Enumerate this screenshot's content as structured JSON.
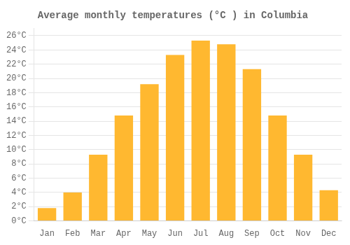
{
  "chart_data": {
    "type": "bar",
    "title": "Average monthly temperatures (°C ) in Columbia",
    "categories": [
      "Jan",
      "Feb",
      "Mar",
      "Apr",
      "May",
      "Jun",
      "Jul",
      "Aug",
      "Sep",
      "Oct",
      "Nov",
      "Dec"
    ],
    "values": [
      1.8,
      4.0,
      9.3,
      14.8,
      19.2,
      23.3,
      25.3,
      24.8,
      21.3,
      14.8,
      9.3,
      4.3
    ],
    "color": "#FFB830",
    "ylim": [
      0,
      27
    ],
    "yticks": [
      {
        "value": 0,
        "label": "0°C"
      },
      {
        "value": 2,
        "label": "2°C"
      },
      {
        "value": 4,
        "label": "4°C"
      },
      {
        "value": 6,
        "label": "6°C"
      },
      {
        "value": 8,
        "label": "8°C"
      },
      {
        "value": 10,
        "label": "10°C"
      },
      {
        "value": 12,
        "label": "12°C"
      },
      {
        "value": 14,
        "label": "14°C"
      },
      {
        "value": 16,
        "label": "16°C"
      },
      {
        "value": 18,
        "label": "18°C"
      },
      {
        "value": 20,
        "label": "20°C"
      },
      {
        "value": 22,
        "label": "22°C"
      },
      {
        "value": 24,
        "label": "24°C"
      },
      {
        "value": 26,
        "label": "26°C"
      }
    ],
    "grid": true
  }
}
